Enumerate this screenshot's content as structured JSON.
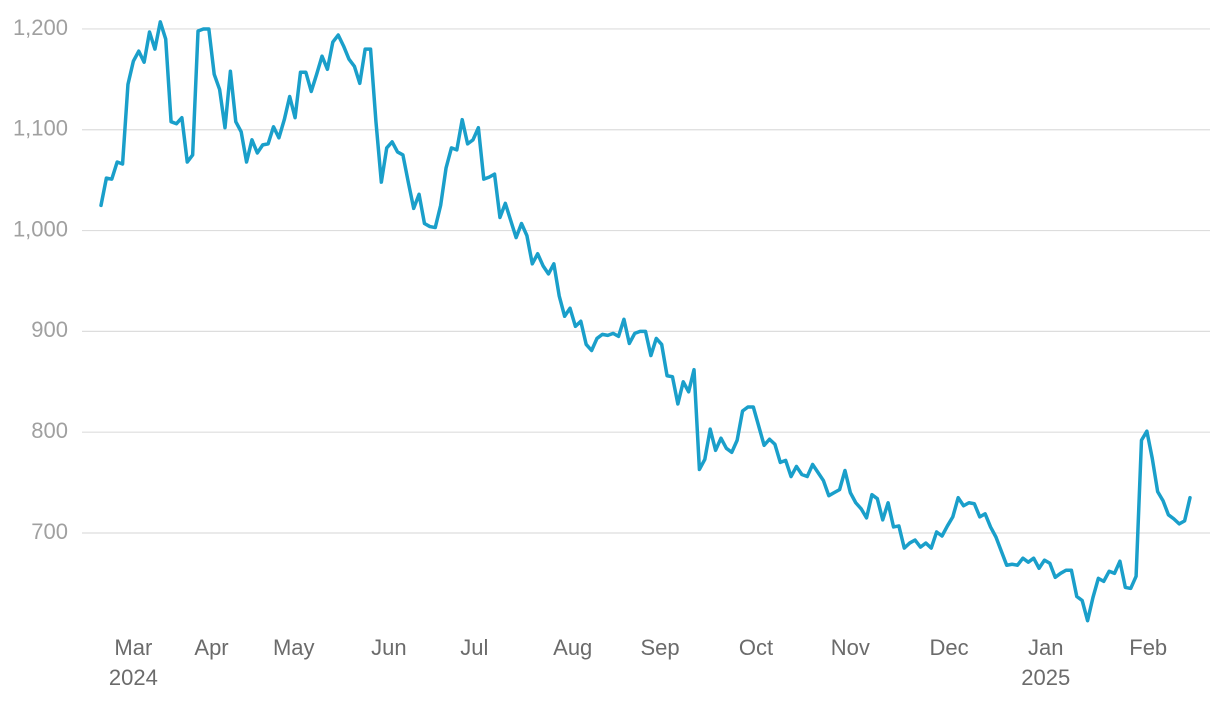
{
  "chart_data": {
    "type": "line",
    "color": "#1a9fca",
    "grid": true,
    "values": [
      1025,
      1052,
      1051,
      1068,
      1066,
      1145,
      1168,
      1178,
      1167,
      1197,
      1180,
      1207,
      1190,
      1108,
      1106,
      1112,
      1068,
      1075,
      1198,
      1200,
      1200,
      1155,
      1140,
      1102,
      1158,
      1108,
      1098,
      1068,
      1090,
      1077,
      1085,
      1086,
      1103,
      1092,
      1110,
      1133,
      1112,
      1157,
      1157,
      1138,
      1155,
      1173,
      1160,
      1187,
      1194,
      1183,
      1170,
      1163,
      1146,
      1180,
      1180,
      1108,
      1048,
      1082,
      1088,
      1078,
      1075,
      1048,
      1022,
      1036,
      1007,
      1004,
      1003,
      1025,
      1062,
      1082,
      1080,
      1110,
      1086,
      1090,
      1102,
      1051,
      1053,
      1056,
      1013,
      1027,
      1010,
      993,
      1007,
      995,
      967,
      977,
      965,
      957,
      967,
      935,
      915,
      923,
      905,
      910,
      887,
      881,
      893,
      897,
      896,
      898,
      895,
      912,
      888,
      898,
      900,
      900,
      876,
      893,
      887,
      856,
      855,
      828,
      850,
      840,
      862,
      763,
      773,
      803,
      782,
      794,
      784,
      780,
      792,
      821,
      825,
      825,
      806,
      787,
      793,
      788,
      770,
      772,
      756,
      766,
      758,
      756,
      768,
      760,
      752,
      737,
      740,
      743,
      762,
      740,
      730,
      724,
      715,
      738,
      734,
      713,
      730,
      706,
      707,
      685,
      690,
      693,
      686,
      690,
      685,
      701,
      697,
      707,
      716,
      735,
      727,
      730,
      729,
      716,
      719,
      706,
      696,
      682,
      668,
      669,
      668,
      675,
      671,
      675,
      665,
      673,
      670,
      656,
      660,
      663,
      663,
      637,
      633,
      613,
      636,
      655,
      652,
      662,
      660,
      672,
      646,
      645,
      657,
      792,
      801,
      774,
      741,
      732,
      718,
      714,
      709,
      712,
      735
    ],
    "xlim": [
      0,
      202
    ],
    "xticks": [
      {
        "value": 6,
        "label": "Mar"
      },
      {
        "value": 20.5,
        "label": "Apr"
      },
      {
        "value": 35.75,
        "label": "May"
      },
      {
        "value": 53.4,
        "label": "Jun"
      },
      {
        "value": 69.25,
        "label": "Jul"
      },
      {
        "value": 87.5,
        "label": "Aug"
      },
      {
        "value": 103.7,
        "label": "Sep"
      },
      {
        "value": 121.5,
        "label": "Oct"
      },
      {
        "value": 139,
        "label": "Nov"
      },
      {
        "value": 157.3,
        "label": "Dec"
      },
      {
        "value": 175.25,
        "label": "Jan"
      },
      {
        "value": 194.25,
        "label": "Feb"
      }
    ],
    "year_labels": [
      {
        "value": 6,
        "label": "2024"
      },
      {
        "value": 175.25,
        "label": "2025"
      }
    ],
    "ylim": [
      610,
      1220
    ],
    "yticks": [
      700,
      800,
      900,
      {
        "value": 1000,
        "label": "1,000"
      },
      {
        "value": 1100,
        "label": "1,100"
      },
      {
        "value": 1200,
        "label": "1,200"
      }
    ]
  }
}
